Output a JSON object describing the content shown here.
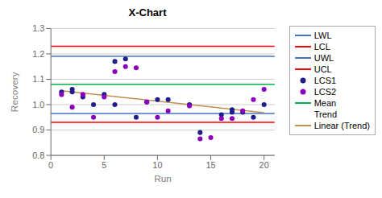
{
  "chart_data": {
    "type": "scatter",
    "title": "X-Chart",
    "xlabel": "Run",
    "ylabel": "Recovery",
    "xlim": [
      0,
      21
    ],
    "ylim": [
      0.8,
      1.3
    ],
    "xticks": [
      0,
      5,
      10,
      15,
      20
    ],
    "yticks": [
      0.8,
      0.9,
      {
        "value": 1.0,
        "label": "1.0"
      },
      1.1,
      1.2,
      1.3
    ],
    "grid": "y",
    "legend": "right",
    "series": [
      {
        "name": "LWL",
        "type": "hline",
        "color": "#4472C4",
        "values": [
          1.19
        ]
      },
      {
        "name": "LCL",
        "type": "hline",
        "color": "#FF0000",
        "values": [
          1.23
        ]
      },
      {
        "name": "UWL",
        "type": "hline",
        "color": "#4472C4",
        "values": [
          0.965
        ]
      },
      {
        "name": "UCL",
        "type": "hline",
        "color": "#FF0000",
        "values": [
          0.93
        ]
      },
      {
        "name": "LCS1",
        "type": "scatter",
        "marker": "circle",
        "color": "#1F1F8B",
        "x": [
          1,
          2,
          2,
          3,
          4,
          5,
          6,
          6,
          7,
          8,
          9,
          10,
          11,
          13,
          14,
          16,
          17,
          17,
          18,
          19,
          20
        ],
        "values": [
          1.05,
          1.06,
          1.05,
          1.03,
          1.0,
          1.04,
          1.17,
          1.0,
          1.18,
          0.95,
          1.01,
          1.02,
          1.02,
          1.0,
          0.89,
          0.96,
          0.97,
          0.98,
          0.97,
          0.95,
          1.0
        ]
      },
      {
        "name": "LCS2",
        "type": "scatter",
        "marker": "circle",
        "color": "#8B00BB",
        "x": [
          1,
          2,
          3,
          4,
          5,
          6,
          7,
          8,
          9,
          10,
          11,
          13,
          14,
          15,
          16,
          17,
          18,
          19,
          20
        ],
        "values": [
          1.04,
          0.99,
          1.04,
          0.95,
          1.03,
          1.13,
          1.15,
          1.145,
          1.01,
          0.95,
          0.975,
          0.995,
          0.865,
          0.87,
          0.945,
          0.945,
          0.975,
          1.02,
          1.06
        ]
      },
      {
        "name": "Mean",
        "type": "hline",
        "color": "#00B050",
        "values": [
          1.08
        ]
      },
      {
        "name": "Trend",
        "values": []
      },
      {
        "name": "Linear (Trend)",
        "type": "line",
        "color": "#C09050",
        "x": [
          1,
          20
        ],
        "values": [
          1.055,
          0.968
        ]
      }
    ]
  }
}
